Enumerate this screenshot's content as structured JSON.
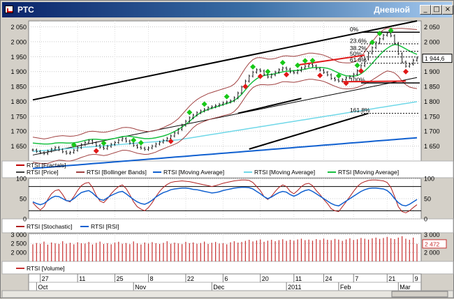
{
  "window": {
    "title": "РТС",
    "interval": "Дневной",
    "btn_min": "_",
    "btn_max": "□",
    "btn_close": "×"
  },
  "chart_data": [
    {
      "type": "line",
      "name": "price-panel",
      "ylim": [
        1600,
        2070
      ],
      "yticks": [
        2050,
        2000,
        1950,
        1900,
        1850,
        1800,
        1750,
        1700,
        1650
      ],
      "ytick_labels": [
        "2 050",
        "2 000",
        "1 950",
        "1 900",
        "1 850",
        "1 800",
        "1 750",
        "1 700",
        "1 650"
      ],
      "ytick_labels_right": [
        "2 050",
        "2 000",
        "1 950",
        "1 900",
        "1 850",
        "1 800",
        "1 750",
        "1 700",
        "1 650"
      ],
      "last_price_label": "1 944,6",
      "last_price": 1944.6,
      "fib_levels": [
        {
          "label": "0%",
          "value": 2032
        },
        {
          "label": "23.6%",
          "value": 1993
        },
        {
          "label": "38.2%",
          "value": 1968
        },
        {
          "label": "50%",
          "value": 1949
        },
        {
          "label": "61.8%",
          "value": 1928
        },
        {
          "label": "100%",
          "value": 1862
        },
        {
          "label": "161.8%",
          "value": 1760
        }
      ],
      "fib_lines": [
        2032,
        1993,
        1968,
        1949,
        1928,
        1862,
        1760
      ],
      "close": [
        1637,
        1632,
        1628,
        1625,
        1633,
        1640,
        1645,
        1638,
        1631,
        1626,
        1629,
        1636,
        1645,
        1655,
        1662,
        1668,
        1661,
        1652,
        1646,
        1642,
        1649,
        1656,
        1662,
        1670,
        1675,
        1667,
        1660,
        1652,
        1646,
        1643,
        1639,
        1644,
        1650,
        1657,
        1663,
        1669,
        1676,
        1684,
        1694,
        1706,
        1720,
        1733,
        1745,
        1754,
        1762,
        1768,
        1773,
        1779,
        1782,
        1786,
        1790,
        1795,
        1798,
        1802,
        1812,
        1828,
        1848,
        1868,
        1885,
        1898,
        1906,
        1902,
        1890,
        1882,
        1889,
        1898,
        1906,
        1912,
        1908,
        1899,
        1896,
        1903,
        1912,
        1918,
        1924,
        1919,
        1910,
        1905,
        1897,
        1889,
        1877,
        1872,
        1868,
        1873,
        1879,
        1883,
        1891,
        1903,
        1920,
        1942,
        1962,
        1980,
        1997,
        2010,
        2022,
        2028,
        2020,
        1995,
        1960,
        1932,
        1918,
        1925,
        1938,
        1944.6
      ],
      "bb_upper": [
        1680,
        1678,
        1676,
        1674,
        1676,
        1679,
        1682,
        1684,
        1685,
        1684,
        1683,
        1684,
        1686,
        1690,
        1695,
        1699,
        1700,
        1699,
        1697,
        1696,
        1698,
        1701,
        1704,
        1708,
        1712,
        1713,
        1712,
        1709,
        1705,
        1702,
        1700,
        1699,
        1700,
        1703,
        1707,
        1712,
        1718,
        1724,
        1732,
        1742,
        1756,
        1770,
        1784,
        1796,
        1806,
        1814,
        1820,
        1826,
        1830,
        1834,
        1838,
        1842,
        1846,
        1850,
        1858,
        1872,
        1892,
        1912,
        1928,
        1940,
        1946,
        1947,
        1945,
        1942,
        1942,
        1944,
        1948,
        1952,
        1953,
        1952,
        1951,
        1953,
        1956,
        1959,
        1962,
        1962,
        1960,
        1958,
        1955,
        1950,
        1944,
        1938,
        1932,
        1930,
        1929,
        1929,
        1932,
        1938,
        1950,
        1966,
        1984,
        2000,
        2016,
        2030,
        2040,
        2046,
        2046,
        2044,
        2045,
        2045,
        2044,
        2043,
        2042,
        2041
      ],
      "bb_lower": [
        1596,
        1594,
        1592,
        1590,
        1592,
        1596,
        1600,
        1603,
        1602,
        1600,
        1600,
        1603,
        1607,
        1612,
        1616,
        1620,
        1622,
        1622,
        1620,
        1618,
        1620,
        1624,
        1628,
        1632,
        1636,
        1636,
        1634,
        1630,
        1626,
        1624,
        1622,
        1623,
        1626,
        1630,
        1636,
        1641,
        1646,
        1651,
        1656,
        1662,
        1672,
        1684,
        1698,
        1712,
        1722,
        1728,
        1733,
        1738,
        1742,
        1745,
        1748,
        1752,
        1755,
        1758,
        1766,
        1779,
        1797,
        1816,
        1833,
        1846,
        1853,
        1856,
        1856,
        1855,
        1856,
        1858,
        1862,
        1866,
        1866,
        1865,
        1864,
        1866,
        1869,
        1872,
        1874,
        1874,
        1872,
        1870,
        1867,
        1862,
        1856,
        1851,
        1846,
        1843,
        1842,
        1842,
        1844,
        1847,
        1852,
        1858,
        1865,
        1872,
        1880,
        1888,
        1896,
        1902,
        1900,
        1895,
        1884,
        1868,
        1856,
        1848,
        1845,
        1843
      ],
      "ma1": [
        1660,
        1659,
        1658,
        1657,
        1657,
        1658,
        1660,
        1661,
        1661,
        1660,
        1660,
        1661,
        1663,
        1666,
        1669,
        1672,
        1673,
        1673,
        1672,
        1671,
        1672,
        1674,
        1676,
        1679,
        1682,
        1683,
        1683,
        1681,
        1679,
        1677,
        1675,
        1675,
        1676,
        1678,
        1681,
        1684,
        1688,
        1693,
        1699,
        1706,
        1714,
        1723,
        1733,
        1744,
        1754,
        1762,
        1768,
        1773,
        1777,
        1781,
        1785,
        1789,
        1793,
        1797,
        1803,
        1812,
        1824,
        1839,
        1854,
        1866,
        1876,
        1883,
        1887,
        1889,
        1891,
        1893,
        1896,
        1899,
        1901,
        1902,
        1903,
        1904,
        1906,
        1908,
        1911,
        1913,
        1914,
        1914,
        1913,
        1911,
        1907,
        1901,
        1895,
        1890,
        1886,
        1885,
        1885,
        1887,
        1893,
        1902,
        1914,
        1928,
        1942,
        1956,
        1968,
        1978,
        1986,
        1991,
        1989,
        1983,
        1976,
        1969,
        1963,
        1958
      ],
      "ma2": [
        1632,
        1633,
        1634,
        1635,
        1636,
        1637,
        1638,
        1639,
        1640,
        1641,
        1642,
        1643,
        1644,
        1645,
        1646,
        1647,
        1648,
        1649,
        1650,
        1651,
        1652,
        1653,
        1654,
        1655,
        1656,
        1657,
        1658,
        1659,
        1660,
        1661,
        1662,
        1663,
        1664,
        1665,
        1666,
        1667,
        1668,
        1669,
        1670,
        1671,
        1673,
        1675,
        1677,
        1679,
        1681,
        1683,
        1685,
        1687,
        1689,
        1691,
        1693,
        1695,
        1697,
        1699,
        1701,
        1703,
        1705,
        1707,
        1709,
        1711,
        1713,
        1715,
        1717,
        1719,
        1721,
        1723,
        1725,
        1727,
        1729,
        1731,
        1733,
        1735,
        1737,
        1739,
        1741,
        1743,
        1745,
        1747,
        1749,
        1751,
        1753,
        1755,
        1757,
        1759,
        1761,
        1763,
        1765,
        1767,
        1769,
        1771,
        1773,
        1775,
        1777,
        1779,
        1781,
        1783,
        1785,
        1787,
        1789,
        1791,
        1793,
        1795,
        1797,
        1799
      ],
      "ma3": [
        1575,
        1576,
        1577,
        1578,
        1579,
        1580,
        1581,
        1582,
        1583,
        1584,
        1585,
        1586,
        1587,
        1588,
        1589,
        1590,
        1591,
        1592,
        1593,
        1594,
        1595,
        1596,
        1597,
        1598,
        1599,
        1600,
        1601,
        1602,
        1603,
        1604,
        1605,
        1606,
        1607,
        1608,
        1609,
        1610,
        1611,
        1612,
        1613,
        1614,
        1615,
        1616,
        1617,
        1618,
        1619,
        1620,
        1621,
        1622,
        1623,
        1624,
        1625,
        1626,
        1627,
        1628,
        1629,
        1630,
        1631,
        1632,
        1633,
        1634,
        1635,
        1636,
        1637,
        1638,
        1639,
        1640,
        1641,
        1642,
        1643,
        1644,
        1645,
        1646,
        1647,
        1648,
        1649,
        1650,
        1651,
        1652,
        1653,
        1654,
        1655,
        1656,
        1657,
        1658,
        1659,
        1660,
        1661,
        1662,
        1663,
        1664,
        1665,
        1666,
        1667,
        1668,
        1669,
        1670,
        1671,
        1672,
        1673,
        1674,
        1675,
        1676,
        1677,
        1678
      ],
      "ma_color": "#1060d0",
      "ma_light_color": "#70d8e8",
      "ma_green_color": "#18c040",
      "bb_color": "#a04040",
      "fractal_up_color": "#18c818",
      "fractal_down_color": "#e01818",
      "fractals_up": [
        11,
        19,
        27,
        29,
        42,
        46,
        52,
        59,
        63,
        67,
        71,
        73,
        75,
        82,
        87,
        91,
        93,
        96
      ],
      "fractals_down": [
        17,
        37,
        57,
        61,
        68,
        77,
        84,
        88,
        100
      ],
      "channel_upper": [
        [
          0,
          1805
        ],
        [
          103,
          2070
        ]
      ],
      "channel_lower": [
        [
          0,
          1620
        ],
        [
          103,
          1880
        ]
      ],
      "trend_lower": [
        [
          58,
          1640
        ],
        [
          90,
          1760
        ]
      ],
      "legend": [
        {
          "label": "RTSI [Fractals]",
          "color": "#c00000"
        },
        {
          "label": "RTSI [Price]",
          "color": "#404040"
        },
        {
          "label": "RTSI [Bollinger Bands]",
          "color": "#a04040"
        },
        {
          "label": "RTSI [Moving Average]",
          "color": "#1060d0"
        },
        {
          "label": "RTSI [Moving Average]",
          "color": "#70d8e8"
        },
        {
          "label": "RTSI [Moving Average]",
          "color": "#18c040"
        }
      ]
    },
    {
      "type": "line",
      "name": "oscillator-panel",
      "ylim": [
        0,
        100
      ],
      "yticks": [
        0,
        50,
        100
      ],
      "ytick_labels": [
        "0",
        "50",
        "100"
      ],
      "ytick_labels_right": [
        "0",
        "50",
        "100"
      ],
      "hlines": [
        20,
        80
      ],
      "stochastic": [
        40,
        30,
        22,
        30,
        48,
        62,
        70,
        72,
        60,
        45,
        42,
        55,
        70,
        82,
        88,
        90,
        78,
        58,
        44,
        40,
        50,
        62,
        72,
        80,
        84,
        75,
        60,
        42,
        30,
        24,
        20,
        28,
        40,
        55,
        68,
        78,
        85,
        90,
        92,
        93,
        94,
        93,
        92,
        90,
        88,
        86,
        84,
        82,
        80,
        82,
        85,
        88,
        90,
        92,
        94,
        95,
        96,
        96,
        95,
        90,
        80,
        70,
        55,
        48,
        56,
        68,
        78,
        84,
        80,
        68,
        62,
        70,
        80,
        86,
        88,
        82,
        70,
        60,
        48,
        38,
        25,
        20,
        18,
        30,
        42,
        55,
        68,
        80,
        88,
        92,
        95,
        96,
        96,
        95,
        94,
        90,
        78,
        55,
        30,
        18,
        15,
        20,
        28,
        35
      ],
      "rsi": [
        42,
        38,
        35,
        38,
        45,
        52,
        56,
        55,
        50,
        45,
        44,
        50,
        58,
        65,
        68,
        70,
        64,
        55,
        48,
        46,
        52,
        58,
        62,
        66,
        68,
        62,
        55,
        48,
        42,
        38,
        36,
        40,
        46,
        54,
        60,
        65,
        68,
        72,
        74,
        75,
        76,
        76,
        75,
        73,
        72,
        70,
        68,
        66,
        64,
        65,
        67,
        70,
        72,
        74,
        76,
        77,
        78,
        78,
        77,
        74,
        68,
        62,
        55,
        50,
        54,
        60,
        65,
        68,
        66,
        60,
        56,
        60,
        66,
        70,
        72,
        68,
        62,
        56,
        50,
        44,
        38,
        34,
        32,
        38,
        44,
        50,
        56,
        62,
        68,
        72,
        75,
        76,
        76,
        75,
        74,
        70,
        62,
        50,
        40,
        34,
        32,
        36,
        42,
        48
      ],
      "stoch_color": "#b02020",
      "rsi_color": "#1060d0",
      "legend": [
        {
          "label": "RTSI [Stochastic]",
          "color": "#b02020"
        },
        {
          "label": "RTSI [RSI]",
          "color": "#1060d0"
        }
      ]
    },
    {
      "type": "bar",
      "name": "volume-panel",
      "ylim": [
        1500,
        3050
      ],
      "yticks": [
        3000,
        2500,
        2000
      ],
      "ytick_labels": [
        "3 000",
        "2 500",
        "2 000"
      ],
      "ytick_labels_right": [
        "3 000",
        "2 500",
        "2 000"
      ],
      "last_volume_label": "2 472",
      "last_volume": 2472,
      "values": [
        2450,
        2520,
        2480,
        2600,
        2430,
        2550,
        2500,
        2470,
        2620,
        2480,
        2530,
        2450,
        2560,
        2510,
        2490,
        2580,
        2440,
        2530,
        2600,
        2470,
        2510,
        2450,
        2540,
        2590,
        2480,
        2520,
        2460,
        2610,
        2500,
        2440,
        2550,
        2490,
        2570,
        2510,
        2470,
        2530,
        2620,
        2480,
        2540,
        2500,
        2460,
        2590,
        2510,
        2550,
        2480,
        2520,
        2600,
        2470,
        2530,
        2580,
        2490,
        2510,
        2450,
        2560,
        2620,
        2540,
        2580,
        2640,
        2700,
        2610,
        2660,
        2720,
        2590,
        2650,
        2700,
        2620,
        2680,
        2730,
        2640,
        2700,
        2650,
        2720,
        2760,
        2680,
        2710,
        2650,
        2740,
        2690,
        2760,
        2700,
        2680,
        2750,
        2710,
        2640,
        2720,
        2780,
        2690,
        2730,
        2800,
        2760,
        2710,
        2780,
        2820,
        2750,
        2800,
        2860,
        2780,
        2740,
        2820,
        2900,
        2760,
        2700,
        2820,
        2472
      ],
      "bar_color": "#c83030",
      "legend": [
        {
          "label": "RTSI [Volume]",
          "color": "#c83030"
        }
      ]
    }
  ],
  "xaxis": {
    "day_labels": [
      {
        "text": "27",
        "i": 2
      },
      {
        "text": "11",
        "i": 12
      },
      {
        "text": "25",
        "i": 22
      },
      {
        "text": "8",
        "i": 31
      },
      {
        "text": "22",
        "i": 41
      },
      {
        "text": "6",
        "i": 51
      },
      {
        "text": "20",
        "i": 61
      },
      {
        "text": "11",
        "i": 70
      },
      {
        "text": "24",
        "i": 78
      },
      {
        "text": "7",
        "i": 86
      },
      {
        "text": "21",
        "i": 95
      },
      {
        "text": "9",
        "i": 102
      }
    ],
    "month_labels": [
      {
        "text": "Oct",
        "i": 1
      },
      {
        "text": "Nov",
        "i": 27
      },
      {
        "text": "Dec",
        "i": 48
      },
      {
        "text": "2011",
        "i": 68
      },
      {
        "text": "Feb",
        "i": 82
      },
      {
        "text": "Mar",
        "i": 98
      }
    ]
  }
}
